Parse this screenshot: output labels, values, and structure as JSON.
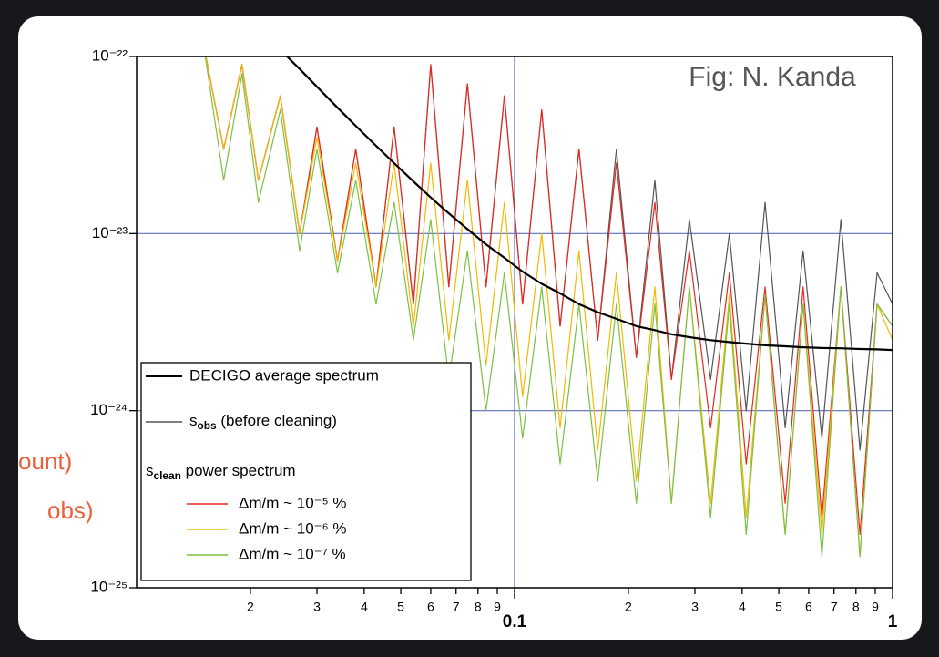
{
  "chart_data": {
    "type": "line",
    "log_x": true,
    "log_y": true,
    "annotation": "Fig: N. Kanda",
    "background_text": [
      "ount)",
      "obs)"
    ],
    "legend_heading": [
      "s",
      "clean",
      " power spectrum"
    ],
    "legend_position": "lower left",
    "xlim": [
      0.01,
      1
    ],
    "ylim": [
      1e-25,
      1e-22
    ],
    "xticks": [
      {
        "value": 0.02,
        "label": "2"
      },
      {
        "value": 0.03,
        "label": "3"
      },
      {
        "value": 0.04,
        "label": "4"
      },
      {
        "value": 0.05,
        "label": "5"
      },
      {
        "value": 0.06,
        "label": "6"
      },
      {
        "value": 0.07,
        "label": "7"
      },
      {
        "value": 0.08,
        "label": "8"
      },
      {
        "value": 0.09,
        "label": "9"
      },
      0.1,
      {
        "value": 0.2,
        "label": "2"
      },
      {
        "value": 0.3,
        "label": "3"
      },
      {
        "value": 0.4,
        "label": "4"
      },
      {
        "value": 0.5,
        "label": "5"
      },
      {
        "value": 0.6,
        "label": "6"
      },
      {
        "value": 0.7,
        "label": "7"
      },
      {
        "value": 0.8,
        "label": "8"
      },
      {
        "value": 0.9,
        "label": "9"
      },
      1
    ],
    "yticks": [
      {
        "value": 1e-25,
        "label": "10⁻²⁵"
      },
      {
        "value": 1e-24,
        "label": "10⁻²⁴"
      },
      {
        "value": 1e-23,
        "label": "10⁻²³"
      },
      {
        "value": 1e-22,
        "label": "10⁻²²"
      }
    ],
    "grid": true,
    "x": [
      0.015,
      0.017,
      0.019,
      0.021,
      0.024,
      0.027,
      0.03,
      0.034,
      0.038,
      0.043,
      0.048,
      0.054,
      0.06,
      0.067,
      0.075,
      0.084,
      0.094,
      0.105,
      0.118,
      0.132,
      0.148,
      0.166,
      0.186,
      0.21,
      0.235,
      0.26,
      0.29,
      0.33,
      0.37,
      0.41,
      0.46,
      0.52,
      0.58,
      0.65,
      0.73,
      0.82,
      0.91,
      1.0
    ],
    "series": [
      {
        "name": "DECIGO average spectrum",
        "color": "#000000",
        "width": 2.2,
        "values": [
          null,
          null,
          null,
          null,
          1.09e-22,
          8.5e-23,
          6.75e-23,
          5.14e-23,
          4.06e-23,
          3.13e-23,
          2.5e-23,
          1.97e-23,
          1.6e-23,
          1.3e-23,
          1.06e-23,
          8.7e-24,
          7.3e-24,
          6.1e-24,
          5.2e-24,
          4.6e-24,
          4e-24,
          3.6e-24,
          3.3e-24,
          3e-24,
          2.85e-24,
          2.7e-24,
          2.6e-24,
          2.5e-24,
          2.44e-24,
          2.39e-24,
          2.34e-24,
          2.31e-24,
          2.28e-24,
          2.26e-24,
          2.25e-24,
          2.23e-24,
          2.22e-24,
          2.2e-24
        ]
      },
      {
        "name": [
          "s",
          "obs",
          " (before cleaning)"
        ],
        "color": "#555555",
        "width": 1.2,
        "values": [
          1.2e-22,
          3e-23,
          9e-23,
          2e-23,
          6e-23,
          1e-23,
          4e-23,
          7e-24,
          3e-23,
          5e-24,
          4e-23,
          4e-24,
          9e-23,
          5e-24,
          7e-23,
          5e-24,
          6e-23,
          4e-24,
          5e-23,
          3e-24,
          3e-23,
          2.5e-24,
          3e-23,
          2e-24,
          2e-23,
          1.5e-24,
          1.2e-23,
          1.5e-24,
          1e-23,
          1e-24,
          1.5e-23,
          8e-25,
          8e-24,
          7e-25,
          1.2e-23,
          6e-25,
          6e-24,
          4e-24
        ]
      },
      {
        "name": "Δm/m ~ 10⁻⁵ %",
        "color": "#e8281e",
        "width": 1.2,
        "values": [
          1.2e-22,
          3e-23,
          9e-23,
          2e-23,
          6e-23,
          1e-23,
          4e-23,
          7e-24,
          3e-23,
          5e-24,
          4e-23,
          4e-24,
          9e-23,
          5e-24,
          7e-23,
          5e-24,
          6e-23,
          4e-24,
          5e-23,
          3e-24,
          3e-23,
          2.5e-24,
          2.5e-23,
          2e-24,
          1.5e-23,
          1.5e-24,
          8e-24,
          8e-25,
          6e-24,
          5e-25,
          5e-24,
          3e-25,
          5e-24,
          2.5e-25,
          5e-24,
          2e-25,
          4e-24,
          3e-24
        ]
      },
      {
        "name": "Δm/m ~ 10⁻⁶ %",
        "color": "#f5b800",
        "width": 1.2,
        "values": [
          1.2e-22,
          3e-23,
          9e-23,
          2e-23,
          6e-23,
          1e-23,
          3.5e-23,
          7e-24,
          2.5e-23,
          5e-24,
          2.5e-23,
          3e-24,
          2.5e-23,
          2.5e-24,
          2e-23,
          1.8e-24,
          1.5e-23,
          1.2e-24,
          1e-23,
          8e-25,
          8e-24,
          6e-25,
          6e-24,
          4e-25,
          5e-24,
          3e-25,
          5e-24,
          3e-25,
          4.5e-24,
          2.5e-25,
          4.5e-24,
          2e-25,
          4e-24,
          2e-25,
          5e-24,
          1.5e-25,
          4e-24,
          2.5e-24
        ]
      },
      {
        "name": "Δm/m ~ 10⁻⁷ %",
        "color": "#7ac143",
        "width": 1.2,
        "values": [
          1.2e-22,
          2e-23,
          8e-23,
          1.5e-23,
          5e-23,
          8e-24,
          3e-23,
          6e-24,
          2e-23,
          4e-24,
          1.5e-23,
          2.5e-24,
          1.2e-23,
          1.5e-24,
          8e-24,
          1e-24,
          6e-24,
          7e-25,
          5e-24,
          5e-25,
          4e-24,
          4e-25,
          4e-24,
          3e-25,
          4e-24,
          3e-25,
          5e-24,
          2.5e-25,
          4e-24,
          2e-25,
          4.5e-24,
          2e-25,
          4e-24,
          1.5e-25,
          5e-24,
          1.5e-25,
          4e-24,
          3e-24
        ]
      }
    ]
  }
}
